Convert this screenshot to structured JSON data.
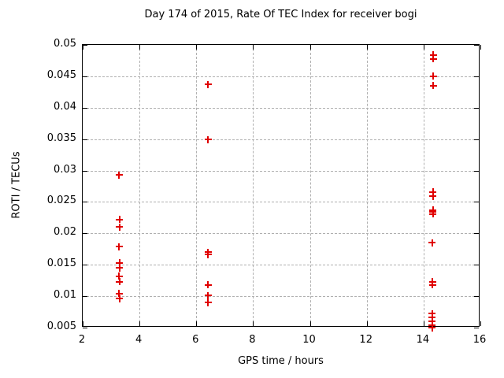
{
  "chart_data": {
    "type": "scatter",
    "title": "Day 174 of 2015, Rate Of TEC Index for receiver bogi",
    "xlabel": "GPS time / hours",
    "ylabel": "ROTI / TECUs",
    "xlim": [
      2,
      16
    ],
    "ylim": [
      0.005,
      0.05
    ],
    "xticks": [
      {
        "v": 2,
        "label": "2"
      },
      {
        "v": 4,
        "label": "4"
      },
      {
        "v": 6,
        "label": "6"
      },
      {
        "v": 8,
        "label": "8"
      },
      {
        "v": 10,
        "label": "10"
      },
      {
        "v": 12,
        "label": "12"
      },
      {
        "v": 14,
        "label": "14"
      },
      {
        "v": 16,
        "label": "16"
      }
    ],
    "yticks": [
      {
        "v": 0.005,
        "label": "0.005"
      },
      {
        "v": 0.01,
        "label": "0.01"
      },
      {
        "v": 0.015,
        "label": "0.015"
      },
      {
        "v": 0.02,
        "label": "0.02"
      },
      {
        "v": 0.025,
        "label": "0.025"
      },
      {
        "v": 0.03,
        "label": "0.03"
      },
      {
        "v": 0.035,
        "label": "0.035"
      },
      {
        "v": 0.04,
        "label": "0.04"
      },
      {
        "v": 0.045,
        "label": "0.045"
      },
      {
        "v": 0.05,
        "label": "0.05"
      }
    ],
    "grid": true,
    "legend": "none",
    "marker": "plus",
    "marker_color": "#e00000",
    "grid_color": "#b0b0b0",
    "axis_color": "#000000",
    "series": [
      {
        "name": "ROTI",
        "points": [
          [
            3.28,
            0.0293
          ],
          [
            3.3,
            0.0222
          ],
          [
            3.3,
            0.021
          ],
          [
            3.28,
            0.0179
          ],
          [
            3.3,
            0.0153
          ],
          [
            3.3,
            0.0145
          ],
          [
            3.28,
            0.0132
          ],
          [
            3.3,
            0.0123
          ],
          [
            3.28,
            0.0104
          ],
          [
            3.3,
            0.0096
          ],
          [
            6.42,
            0.0437
          ],
          [
            6.41,
            0.0349
          ],
          [
            6.42,
            0.017
          ],
          [
            6.42,
            0.0166
          ],
          [
            6.41,
            0.0118
          ],
          [
            6.41,
            0.0101
          ],
          [
            6.41,
            0.009
          ],
          [
            14.35,
            0.0484
          ],
          [
            14.35,
            0.0478
          ],
          [
            14.35,
            0.045
          ],
          [
            14.35,
            0.0435
          ],
          [
            14.33,
            0.0266
          ],
          [
            14.33,
            0.0259
          ],
          [
            14.33,
            0.0237
          ],
          [
            14.33,
            0.0234
          ],
          [
            14.33,
            0.0231
          ],
          [
            14.3,
            0.0185
          ],
          [
            14.32,
            0.0123
          ],
          [
            14.32,
            0.0118
          ],
          [
            14.3,
            0.0072
          ],
          [
            14.3,
            0.0066
          ],
          [
            14.3,
            0.006
          ],
          [
            14.3,
            0.0054
          ],
          [
            14.3,
            0.005
          ]
        ]
      }
    ]
  }
}
